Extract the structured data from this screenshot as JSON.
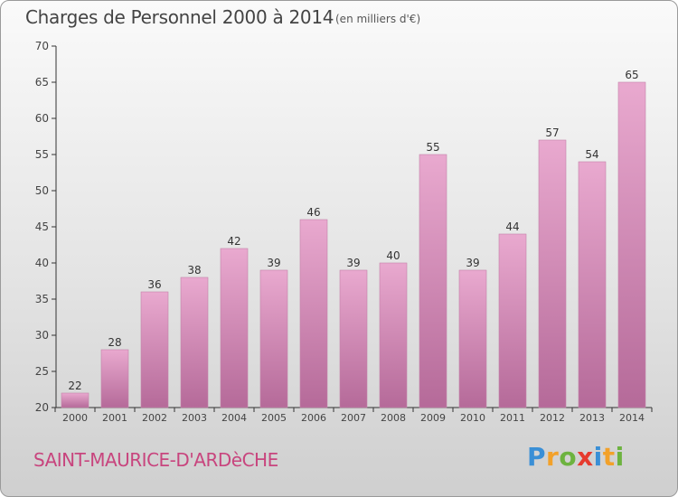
{
  "header": {
    "title": "Charges de Personnel 2000 à 2014",
    "subtitle": "(en milliers d'€)"
  },
  "footer": {
    "commune": "SAINT-MAURICE-D'ARDèCHE",
    "logo_letters": [
      "P",
      "r",
      "o",
      "x",
      "i",
      "t",
      "i"
    ],
    "logo_colors": [
      "#3a8fd6",
      "#f2a12a",
      "#6db33f",
      "#e63b2e",
      "#3a8fd6",
      "#f2a12a",
      "#6db33f"
    ]
  },
  "chart_data": {
    "type": "bar",
    "title": "Charges de Personnel 2000 à 2014",
    "subtitle": "(en milliers d'€)",
    "categories": [
      "2000",
      "2001",
      "2002",
      "2003",
      "2004",
      "2005",
      "2006",
      "2007",
      "2008",
      "2009",
      "2010",
      "2011",
      "2012",
      "2013",
      "2014"
    ],
    "values": [
      22,
      28,
      36,
      38,
      42,
      39,
      46,
      39,
      40,
      55,
      39,
      44,
      57,
      54,
      65
    ],
    "ylim": [
      20,
      70
    ],
    "yticks": [
      20,
      25,
      30,
      35,
      40,
      45,
      50,
      55,
      60,
      65,
      70
    ],
    "grid": false,
    "bar_color_light": "#e9a9cf",
    "bar_color_dark": "#b56a99",
    "axis_color": "#333333"
  }
}
